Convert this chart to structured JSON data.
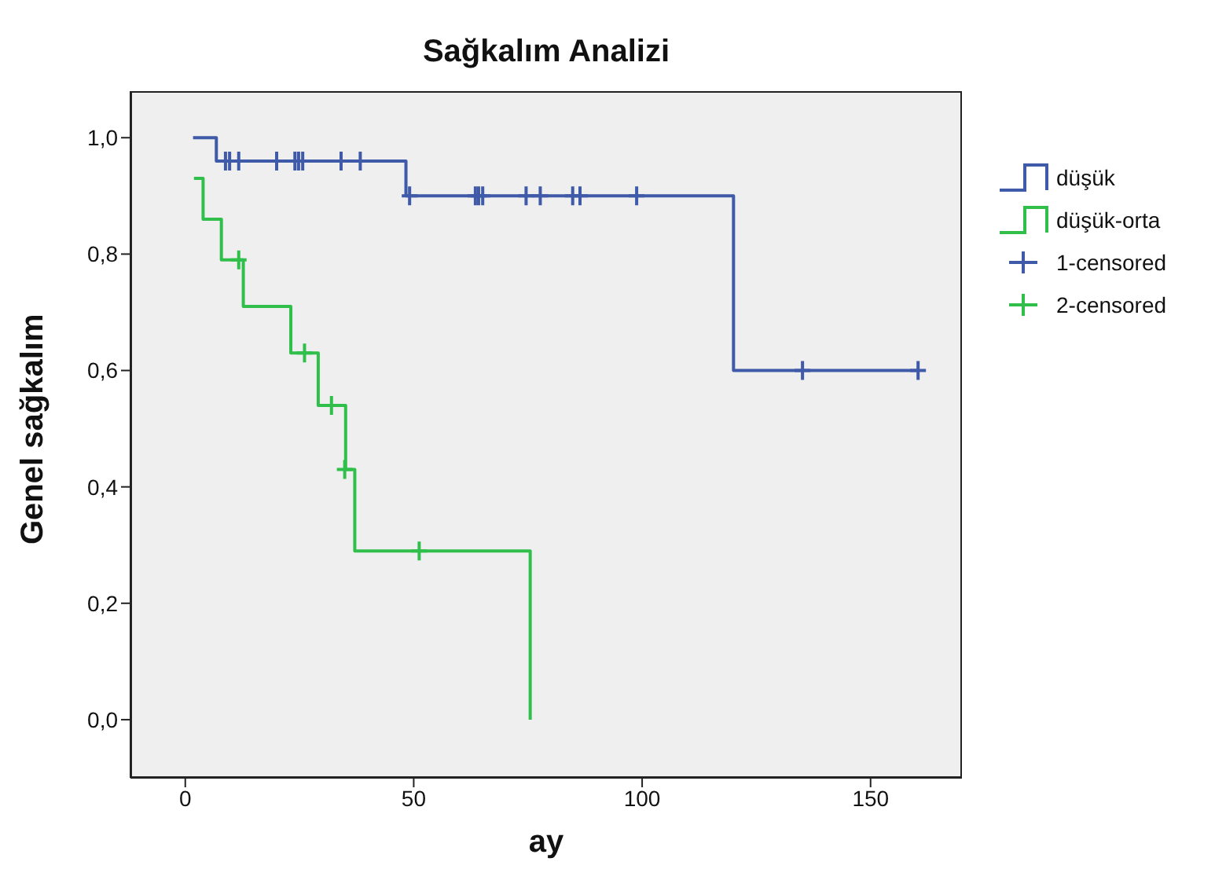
{
  "chart_data": {
    "type": "step",
    "title": "Sağkalım Analizi",
    "xlabel": "ay",
    "ylabel": "Genel sağkalım",
    "xlim": [
      -12,
      170
    ],
    "xticks": [
      0,
      50,
      100,
      150
    ],
    "ylim": [
      -0.1,
      1.08
    ],
    "yticks": [
      {
        "value": 0,
        "label": "0,0"
      },
      {
        "value": 0.2,
        "label": "0,2"
      },
      {
        "value": 0.4,
        "label": "0,4"
      },
      {
        "value": 0.6,
        "label": "0,6"
      },
      {
        "value": 0.8,
        "label": "0,8"
      },
      {
        "value": 1,
        "label": "1,0"
      }
    ],
    "legend": "right",
    "grid": false,
    "series": [
      {
        "name": "düşük",
        "color": "#3f5aa8",
        "x": [
          1.7,
          6.8,
          48.3,
          120,
          160.4
        ],
        "values": [
          1,
          0.96,
          0.9,
          0.6,
          0.6
        ]
      },
      {
        "name": "düşük-orta",
        "color": "#2fbf4a",
        "x": [
          1.9,
          3.9,
          7.9,
          12.7,
          23.1,
          29.1,
          35.1,
          37.1,
          75.5
        ],
        "values": [
          0.93,
          0.86,
          0.79,
          0.71,
          0.63,
          0.54,
          0.43,
          0.29,
          0
        ]
      },
      {
        "name": "1-censored",
        "type": "scatter",
        "marker": "cross",
        "color": "#3f5aa8",
        "x": [
          8.8,
          9.7,
          11.7,
          20,
          24,
          24.8,
          25.7,
          34.1,
          38.3,
          49.1,
          63.5,
          64.2,
          65.1,
          74.6,
          77.7,
          84.8,
          86.4,
          98.8,
          135.1,
          160.4
        ],
        "values": [
          0.96,
          0.96,
          0.96,
          0.96,
          0.96,
          0.96,
          0.96,
          0.96,
          0.96,
          0.9,
          0.9,
          0.9,
          0.9,
          0.9,
          0.9,
          0.9,
          0.9,
          0.9,
          0.6,
          0.6
        ]
      },
      {
        "name": "2-censored",
        "type": "scatter",
        "marker": "cross",
        "color": "#2fbf4a",
        "x": [
          11.7,
          26.1,
          32,
          34.9,
          51.2
        ],
        "values": [
          0.79,
          0.63,
          0.54,
          0.43,
          0.29
        ]
      }
    ]
  }
}
